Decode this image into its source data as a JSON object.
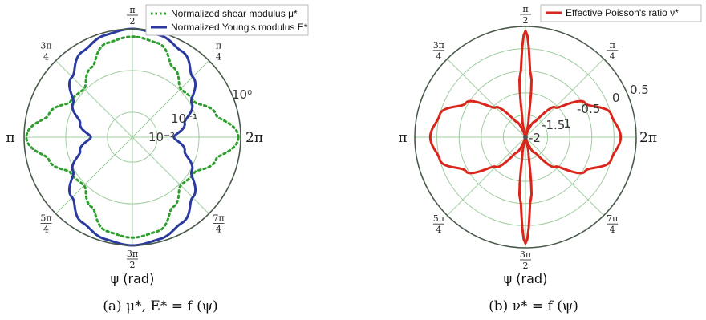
{
  "chart_data": [
    {
      "type": "line",
      "projection": "polar",
      "radial_scale": "log",
      "radial_ticks": [
        {
          "value": 0.01,
          "label": "10⁻²"
        },
        {
          "value": 0.1,
          "label": "10⁻¹"
        },
        {
          "value": 1,
          "label": "10⁰"
        }
      ],
      "angle_ticks": [
        {
          "angle": 90,
          "num": "π",
          "den": "2"
        },
        {
          "angle": 45,
          "num": "π",
          "den": "4"
        },
        {
          "angle": 0,
          "num": "2π",
          "den": ""
        },
        {
          "angle": 315,
          "num": "7π",
          "den": "4"
        },
        {
          "angle": 270,
          "num": "3π",
          "den": "2"
        },
        {
          "angle": 225,
          "num": "5π",
          "den": "4"
        },
        {
          "angle": 180,
          "num": "π",
          "den": ""
        },
        {
          "angle": 135,
          "num": "3π",
          "den": "4"
        }
      ],
      "xlabel": "ψ (rad)",
      "caption": "(a) μ*, E* = f (ψ)",
      "legend_position": "top-right",
      "series": [
        {
          "name": "Normalized shear modulus μ*",
          "color": "#2e9e2e",
          "style": "dotted",
          "angles": [
            0,
            15,
            30,
            45,
            60,
            75,
            90
          ],
          "values": [
            0.88,
            0.3,
            0.13,
            0.11,
            0.22,
            0.55,
            0.65
          ]
        },
        {
          "name": "Normalized Young's modulus E*",
          "color": "#2b3a9e",
          "style": "solid",
          "angles": [
            0,
            15,
            30,
            45,
            60,
            75,
            90
          ],
          "values": [
            0.025,
            0.05,
            0.11,
            0.28,
            0.6,
            0.86,
            1.0
          ]
        }
      ]
    },
    {
      "type": "line",
      "projection": "polar",
      "radial_scale": "linear",
      "rlim": [
        -2,
        0.5
      ],
      "radial_ticks": [
        {
          "value": -2,
          "label": "-2"
        },
        {
          "value": -1.5,
          "label": "-1.5"
        },
        {
          "value": -1,
          "label": "-1"
        },
        {
          "value": -0.5,
          "label": "-0.5"
        },
        {
          "value": 0,
          "label": "0"
        },
        {
          "value": 0.5,
          "label": "0.5"
        }
      ],
      "angle_ticks": [
        {
          "angle": 90,
          "num": "π",
          "den": "2"
        },
        {
          "angle": 45,
          "num": "π",
          "den": "4"
        },
        {
          "angle": 0,
          "num": "2π",
          "den": ""
        },
        {
          "angle": 315,
          "num": "7π",
          "den": "4"
        },
        {
          "angle": 270,
          "num": "3π",
          "den": "2"
        },
        {
          "angle": 225,
          "num": "5π",
          "den": "4"
        },
        {
          "angle": 180,
          "num": "π",
          "den": ""
        },
        {
          "angle": 135,
          "num": "3π",
          "den": "4"
        }
      ],
      "xlabel": "ψ (rad)",
      "caption": "(b) ν* = f (ψ)",
      "legend_position": "top-right",
      "series": [
        {
          "name": "Effective Poisson's ratio ν*",
          "color": "#d9261c",
          "style": "solid",
          "angles": [
            0,
            15,
            30,
            45,
            60,
            75,
            80,
            85,
            90
          ],
          "values": [
            0.15,
            0.0,
            -0.45,
            -1.05,
            -1.6,
            -1.98,
            -1.6,
            -0.6,
            0.4
          ]
        }
      ]
    }
  ]
}
